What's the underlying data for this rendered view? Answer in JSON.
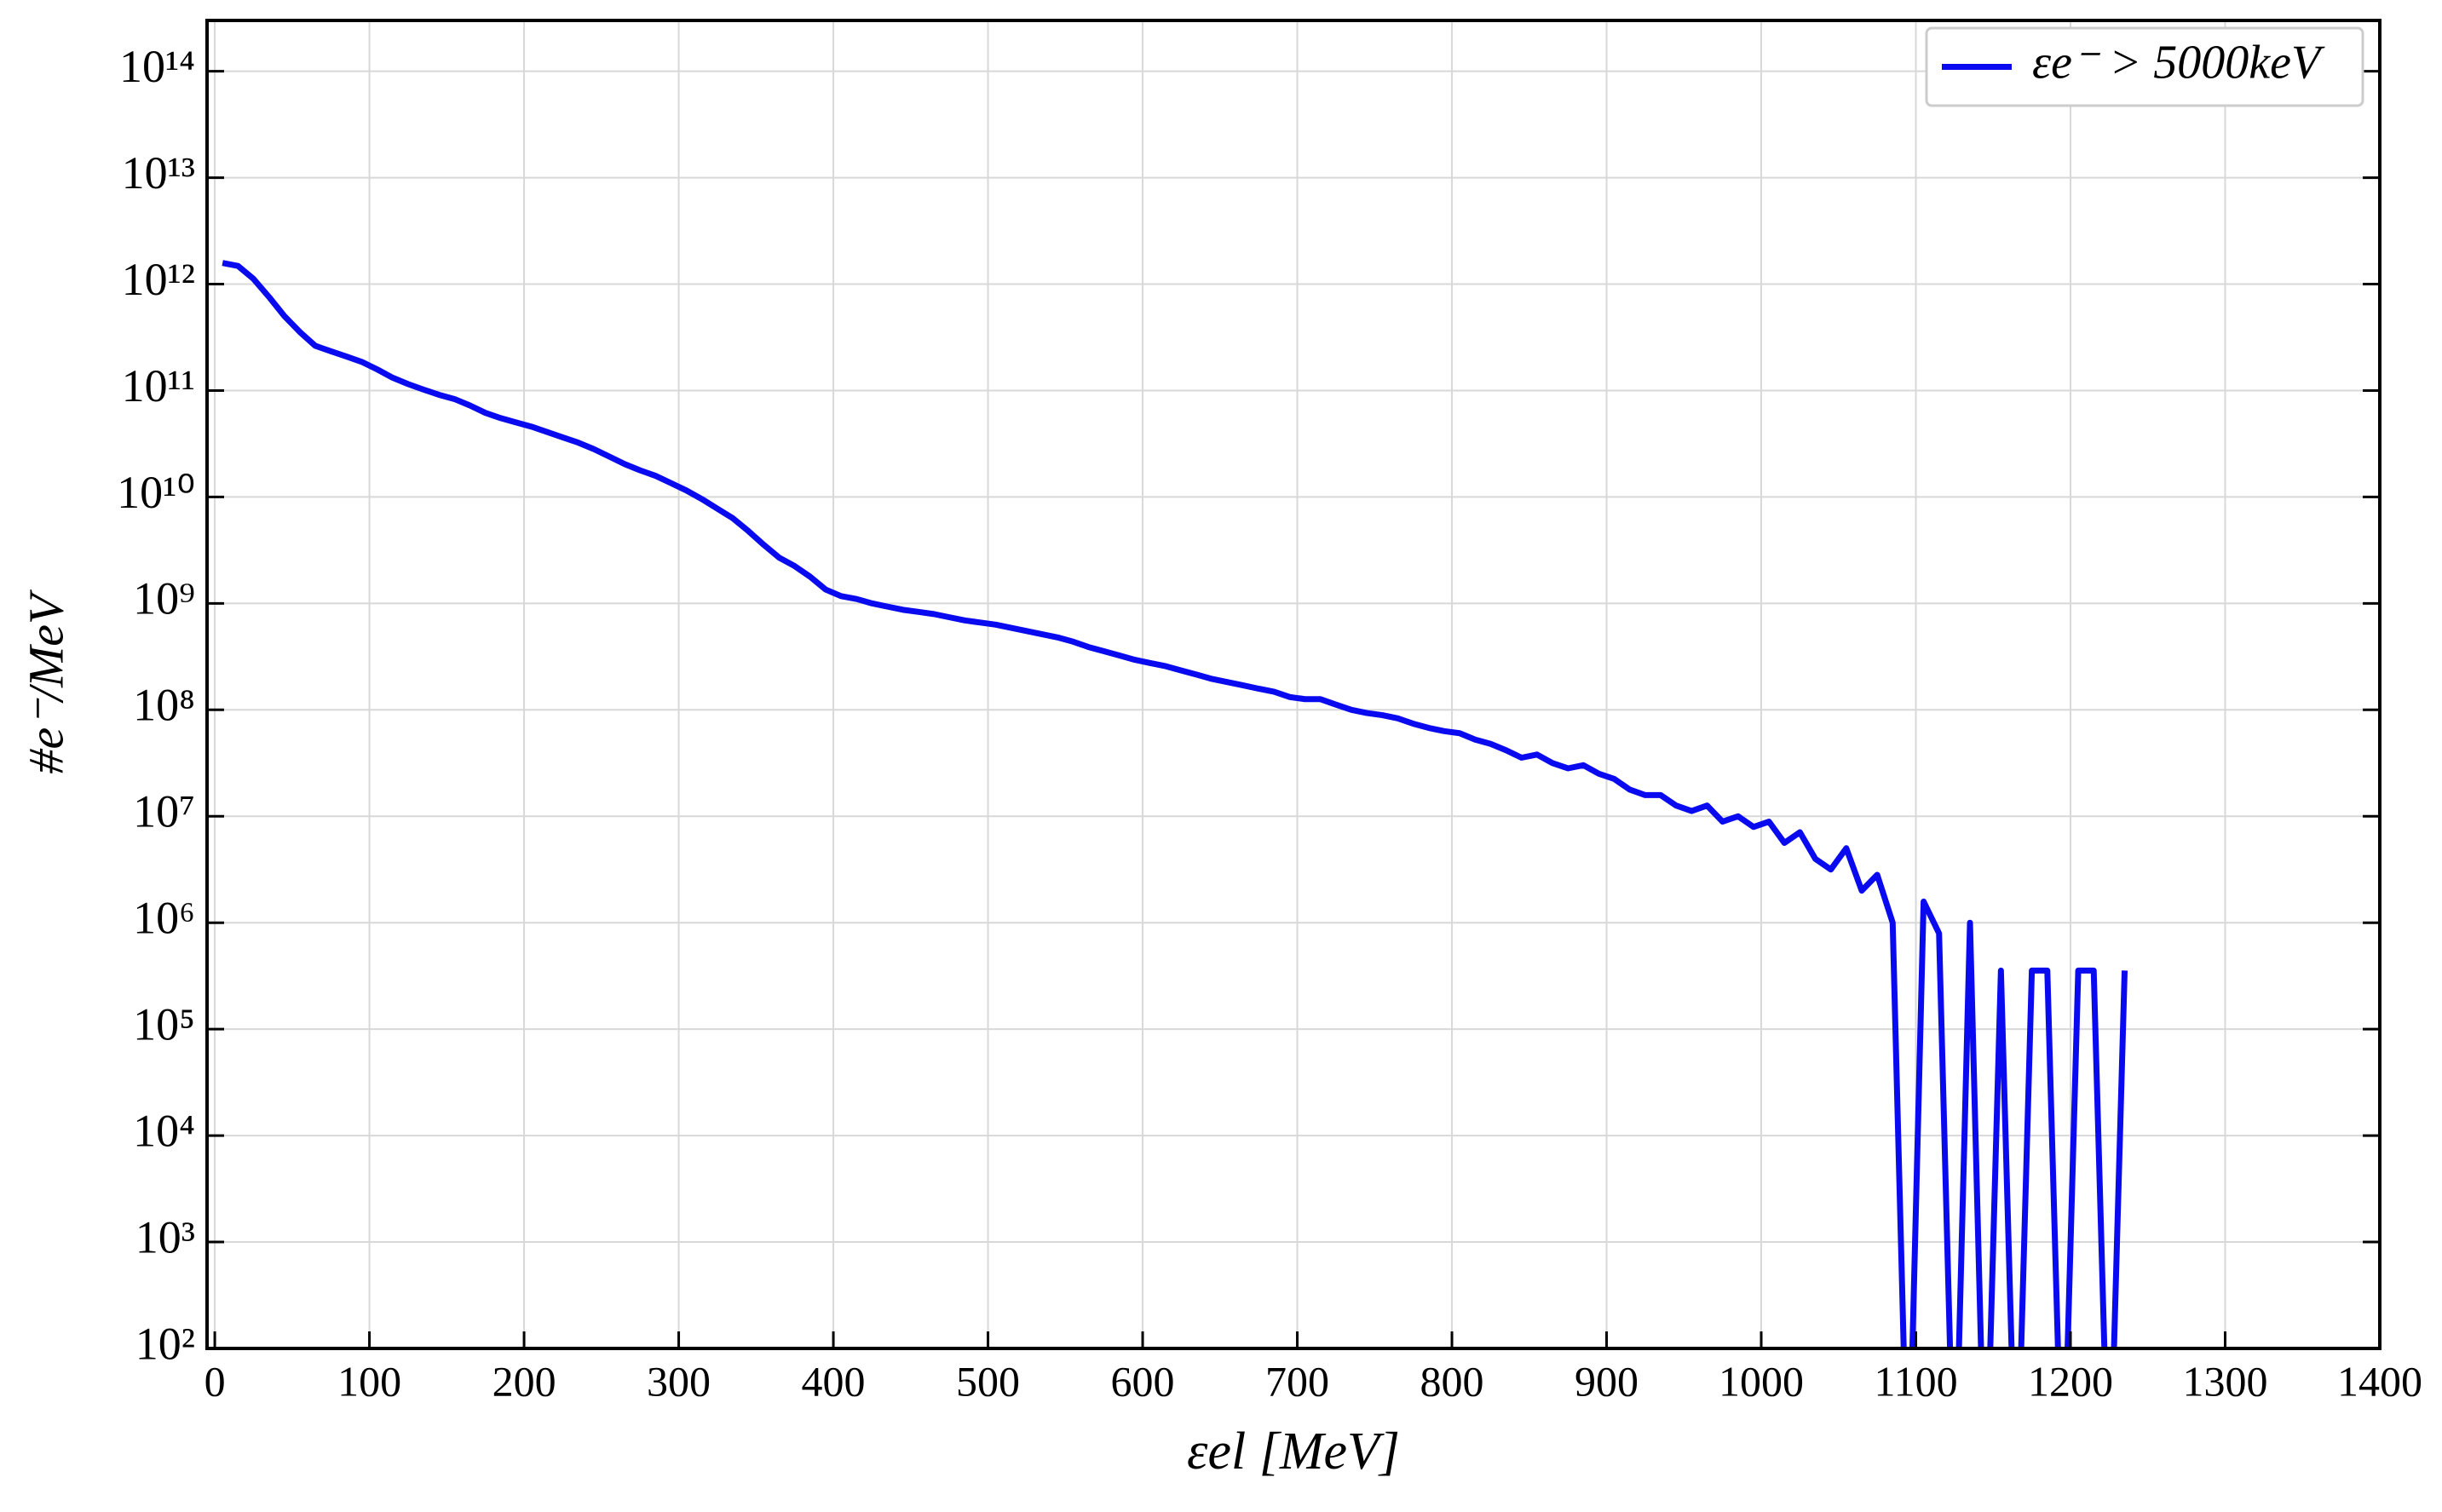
{
  "chart_data": {
    "type": "line",
    "xlabel": "εel [MeV]",
    "ylabel": "#e⁻/MeV",
    "x": [
      5,
      15,
      25,
      35,
      45,
      55,
      65,
      75,
      85,
      95,
      105,
      115,
      125,
      135,
      145,
      155,
      165,
      175,
      185,
      195,
      205,
      215,
      225,
      235,
      245,
      255,
      265,
      275,
      285,
      295,
      305,
      315,
      325,
      335,
      345,
      355,
      365,
      375,
      385,
      395,
      405,
      415,
      425,
      435,
      445,
      455,
      465,
      475,
      485,
      495,
      505,
      515,
      525,
      535,
      545,
      555,
      565,
      575,
      585,
      595,
      605,
      615,
      625,
      635,
      645,
      655,
      665,
      675,
      685,
      695,
      705,
      715,
      725,
      735,
      745,
      755,
      765,
      775,
      785,
      795,
      805,
      815,
      825,
      835,
      845,
      855,
      865,
      875,
      885,
      895,
      905,
      915,
      925,
      935,
      945,
      955,
      965,
      975,
      985,
      995,
      1005,
      1015,
      1025,
      1035,
      1045,
      1055,
      1065,
      1075,
      1085,
      1095,
      1105,
      1115,
      1125,
      1135,
      1145,
      1155,
      1165,
      1175,
      1185,
      1195,
      1205,
      1215,
      1225,
      1235
    ],
    "series": [
      {
        "name": "εe⁻ > 5000keV",
        "color": "#0a0af0",
        "values": [
          1580000000000.0,
          1480000000000.0,
          1120000000000.0,
          759000000000.0,
          501000000000.0,
          355000000000.0,
          263000000000.0,
          234000000000.0,
          209000000000.0,
          186000000000.0,
          158000000000.0,
          132000000000.0,
          115000000000.0,
          102000000000.0,
          91200000000.0,
          83200000000.0,
          72400000000.0,
          61700000000.0,
          55000000000.0,
          50100000000.0,
          45700000000.0,
          40700000000.0,
          36300000000.0,
          32400000000.0,
          28200000000.0,
          24000000000.0,
          20400000000.0,
          17800000000.0,
          15800000000.0,
          13500000000.0,
          11500000000.0,
          9550000000.0,
          7760000000.0,
          6310000000.0,
          4790000000.0,
          3550000000.0,
          2690000000.0,
          2240000000.0,
          1780000000.0,
          1350000000.0,
          1170000000.0,
          1100000000.0,
          1000000000.0,
          933000000.0,
          871000000.0,
          832000000.0,
          794000000.0,
          741000000.0,
          692000000.0,
          661000000.0,
          631000000.0,
          589000000.0,
          550000000.0,
          513000000.0,
          479000000.0,
          437000000.0,
          389000000.0,
          355000000.0,
          324000000.0,
          295000000.0,
          275000000.0,
          257000000.0,
          234000000.0,
          214000000.0,
          195000000.0,
          182000000.0,
          170000000.0,
          158000000.0,
          148000000.0,
          132000000.0,
          126000000.0,
          126000000.0,
          112000000.0,
          100000000.0,
          93300000.0,
          89100000.0,
          83200000.0,
          74100000.0,
          67600000.0,
          63100000.0,
          60300000.0,
          52500000.0,
          47900000.0,
          41700000.0,
          35500000.0,
          38000000.0,
          31600000.0,
          28200000.0,
          30200000.0,
          25100000.0,
          22400000.0,
          17800000.0,
          15800000.0,
          15800000.0,
          12600000.0,
          11200000.0,
          12600000.0,
          8910000.0,
          10000000.0,
          7940000.0,
          8910000.0,
          5620000.0,
          7080000.0,
          3980000.0,
          3160000.0,
          5010000.0,
          2000000.0,
          2820000.0,
          1000000.0,
          0,
          1580000.0,
          794000.0,
          0,
          1000000.0,
          0,
          355000.0,
          0,
          355000.0,
          355000.0,
          0,
          355000.0,
          355000.0,
          0,
          355000.0
        ]
      }
    ],
    "xlim": [
      -5,
      1400
    ],
    "xticks": [
      0,
      100,
      200,
      300,
      400,
      500,
      600,
      700,
      800,
      900,
      1000,
      1100,
      1200,
      1300,
      1400
    ],
    "ylim": [
      100,
      300000000000000.0
    ],
    "log_y": true,
    "yticks": [
      {
        "value": 100.0,
        "label": "10²"
      },
      {
        "value": 1000.0,
        "label": "10³"
      },
      {
        "value": 10000.0,
        "label": "10⁴"
      },
      {
        "value": 100000.0,
        "label": "10⁵"
      },
      {
        "value": 1000000.0,
        "label": "10⁶"
      },
      {
        "value": 10000000.0,
        "label": "10⁷"
      },
      {
        "value": 100000000.0,
        "label": "10⁸"
      },
      {
        "value": 1000000000.0,
        "label": "10⁹"
      },
      {
        "value": 10000000000.0,
        "label": "10¹⁰"
      },
      {
        "value": 100000000000.0,
        "label": "10¹¹"
      },
      {
        "value": 1000000000000.0,
        "label": "10¹²"
      },
      {
        "value": 10000000000000.0,
        "label": "10¹³"
      },
      {
        "value": 100000000000000.0,
        "label": "10¹⁴"
      }
    ],
    "grid": true,
    "legend": "upper right"
  }
}
